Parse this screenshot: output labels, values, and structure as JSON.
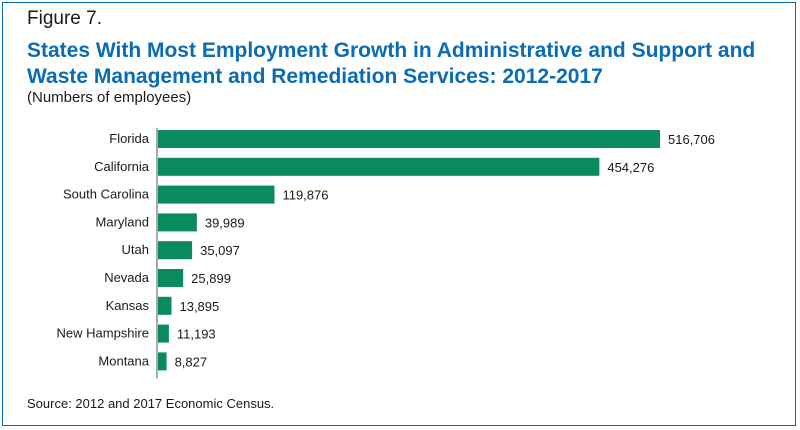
{
  "figure_label": "Figure 7.",
  "source": "Source: 2012 and 2017 Economic Census.",
  "colors": {
    "bar": "#0a8a5f",
    "title": "#0b6cb4",
    "axis": "#555555"
  },
  "chart_data": {
    "type": "bar",
    "orientation": "horizontal",
    "title": "States With Most Employment Growth in Administrative and Support and Waste Management and Remediation Services: 2012-2017",
    "subtitle": "(Numbers of employees)",
    "categories": [
      "Florida",
      "California",
      "South Carolina",
      "Maryland",
      "Utah",
      "Nevada",
      "Kansas",
      "New Hampshire",
      "Montana"
    ],
    "values": [
      516706,
      454276,
      119876,
      39989,
      35097,
      25899,
      13895,
      11193,
      8827
    ],
    "value_labels": [
      "516,706",
      "454,276",
      "119,876",
      "39,989",
      "35,097",
      "25,899",
      "13,895",
      "11,193",
      "8,827"
    ],
    "xlim": [
      0,
      516706
    ],
    "grid": false,
    "legend": false
  }
}
